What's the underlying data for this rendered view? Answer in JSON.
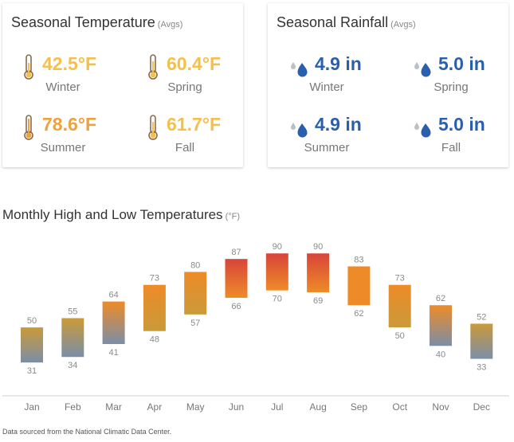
{
  "temperature_card": {
    "title": "Seasonal Temperature",
    "subtitle": "(Avgs)",
    "icon": "thermometer-icon",
    "items": [
      {
        "label": "Winter",
        "value": "42.5°F"
      },
      {
        "label": "Spring",
        "value": "60.4°F"
      },
      {
        "label": "Summer",
        "value": "78.6°F"
      },
      {
        "label": "Fall",
        "value": "61.7°F"
      }
    ]
  },
  "rainfall_card": {
    "title": "Seasonal Rainfall",
    "subtitle": "(Avgs)",
    "icon": "raindrops-icon",
    "items": [
      {
        "label": "Winter",
        "value": "4.9 in"
      },
      {
        "label": "Spring",
        "value": "5.0 in"
      },
      {
        "label": "Summer",
        "value": "4.9 in"
      },
      {
        "label": "Fall",
        "value": "5.0 in"
      }
    ]
  },
  "chart_heading": {
    "title": "Monthly High and Low Temperatures",
    "unit": "(°F)"
  },
  "chart_data": {
    "type": "bar",
    "categories": [
      "Jan",
      "Feb",
      "Mar",
      "Apr",
      "May",
      "Jun",
      "Jul",
      "Aug",
      "Sep",
      "Oct",
      "Nov",
      "Dec"
    ],
    "series": [
      {
        "name": "",
        "values": [
          50,
          55,
          64,
          73,
          80,
          87,
          90,
          90,
          83,
          73,
          62,
          52
        ]
      },
      {
        "name": "",
        "values": [
          31,
          34,
          41,
          48,
          57,
          66,
          70,
          69,
          62,
          50,
          40,
          33
        ]
      }
    ],
    "ylim": [
      13,
      100
    ],
    "colors": {
      "hot": "#d8443a",
      "warm": "#ee8b28",
      "mild": "#ca9a3a",
      "cool": "#7a8ea8"
    }
  },
  "footer": "Data sourced from the National Climatic Data Center."
}
